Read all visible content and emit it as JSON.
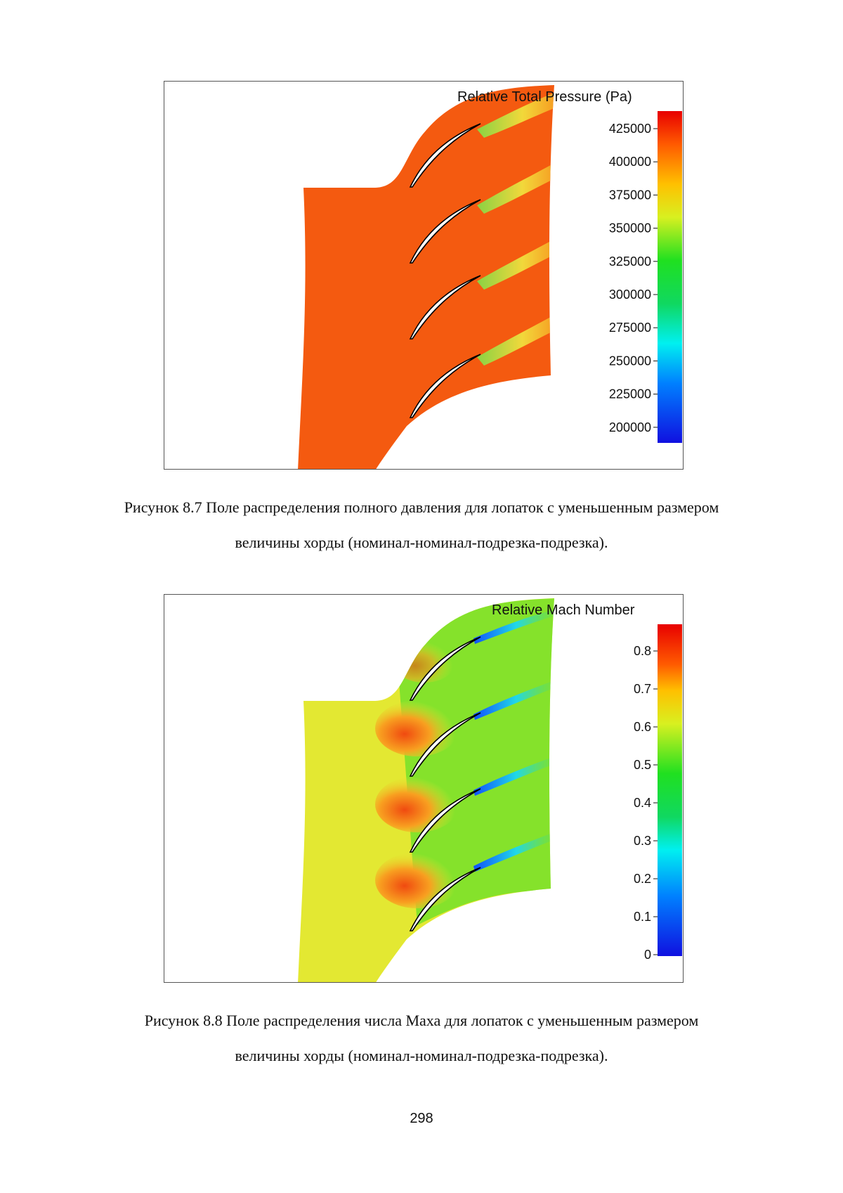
{
  "figures": [
    {
      "id": "fig1",
      "colorbar_title": "Relative Total Pressure (Pa)",
      "ticks": [
        "425000",
        "400000",
        "375000",
        "350000",
        "325000",
        "300000",
        "275000",
        "250000",
        "225000",
        "200000"
      ],
      "caption": {
        "line1": "Рисунок 8.7 Поле распределения полного давления для лопаток с уменьшенным размером",
        "line2": "величины хорды (номинал-номинал-подрезка-подрезка)."
      }
    },
    {
      "id": "fig2",
      "colorbar_title": "Relative Mach Number",
      "ticks": [
        "0.8",
        "0.7",
        "0.6",
        "0.5",
        "0.4",
        "0.3",
        "0.2",
        "0.1",
        "0"
      ],
      "caption": {
        "line1": "Рисунок 8.8 Поле распределения числа Маха для лопаток с уменьшенным размером",
        "line2": "величины хорды (номинал-номинал-подрезка-подрезка)."
      }
    }
  ],
  "page_number": "298",
  "colors": {
    "pressure_field": "#f45a10",
    "mach_field": "#e3e832",
    "mach_passage": "#74e02a",
    "mach_hot": "#f04a10"
  }
}
